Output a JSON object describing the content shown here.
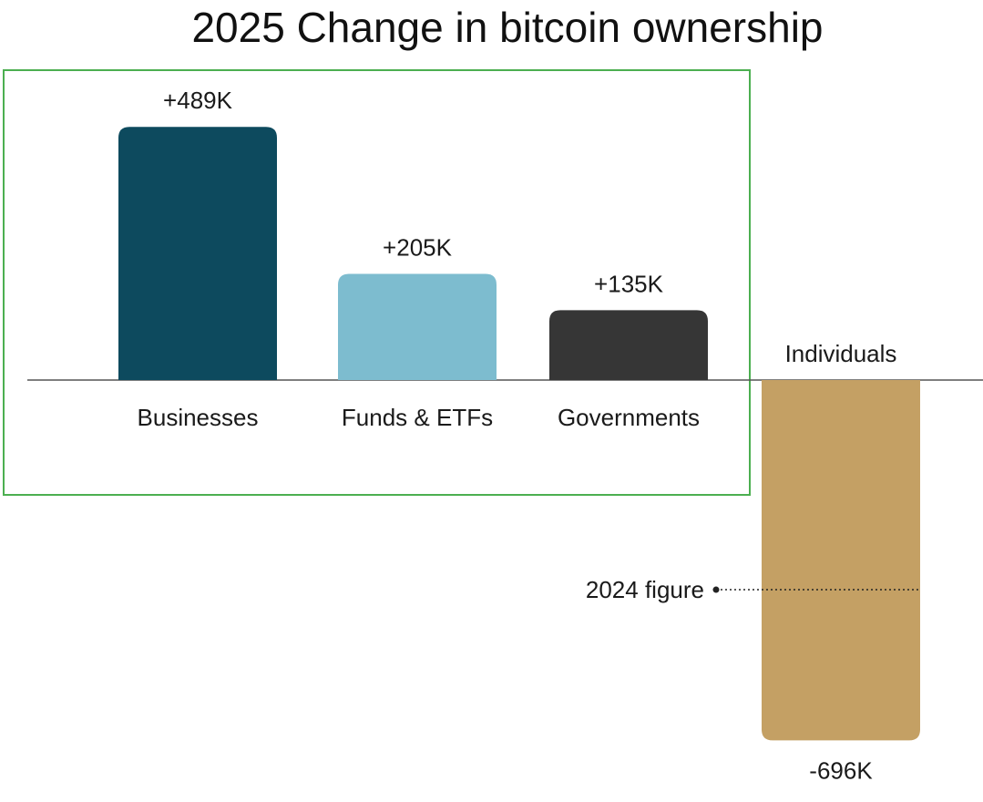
{
  "chart_data": {
    "type": "bar",
    "title": "2025 Change in bitcoin ownership",
    "categories": [
      "Businesses",
      "Funds & ETFs",
      "Governments",
      "Individuals"
    ],
    "values": [
      489,
      205,
      135,
      -696
    ],
    "value_labels": [
      "+489K",
      "+205K",
      "+135K",
      "-696K"
    ],
    "colors": [
      "#0d4a5e",
      "#7dbccf",
      "#363636",
      "#c4a064"
    ],
    "annotation": {
      "label": "2024 figure",
      "value": -450
    },
    "highlight_box_color": "#4caf50",
    "grid": false,
    "legend": "none"
  }
}
